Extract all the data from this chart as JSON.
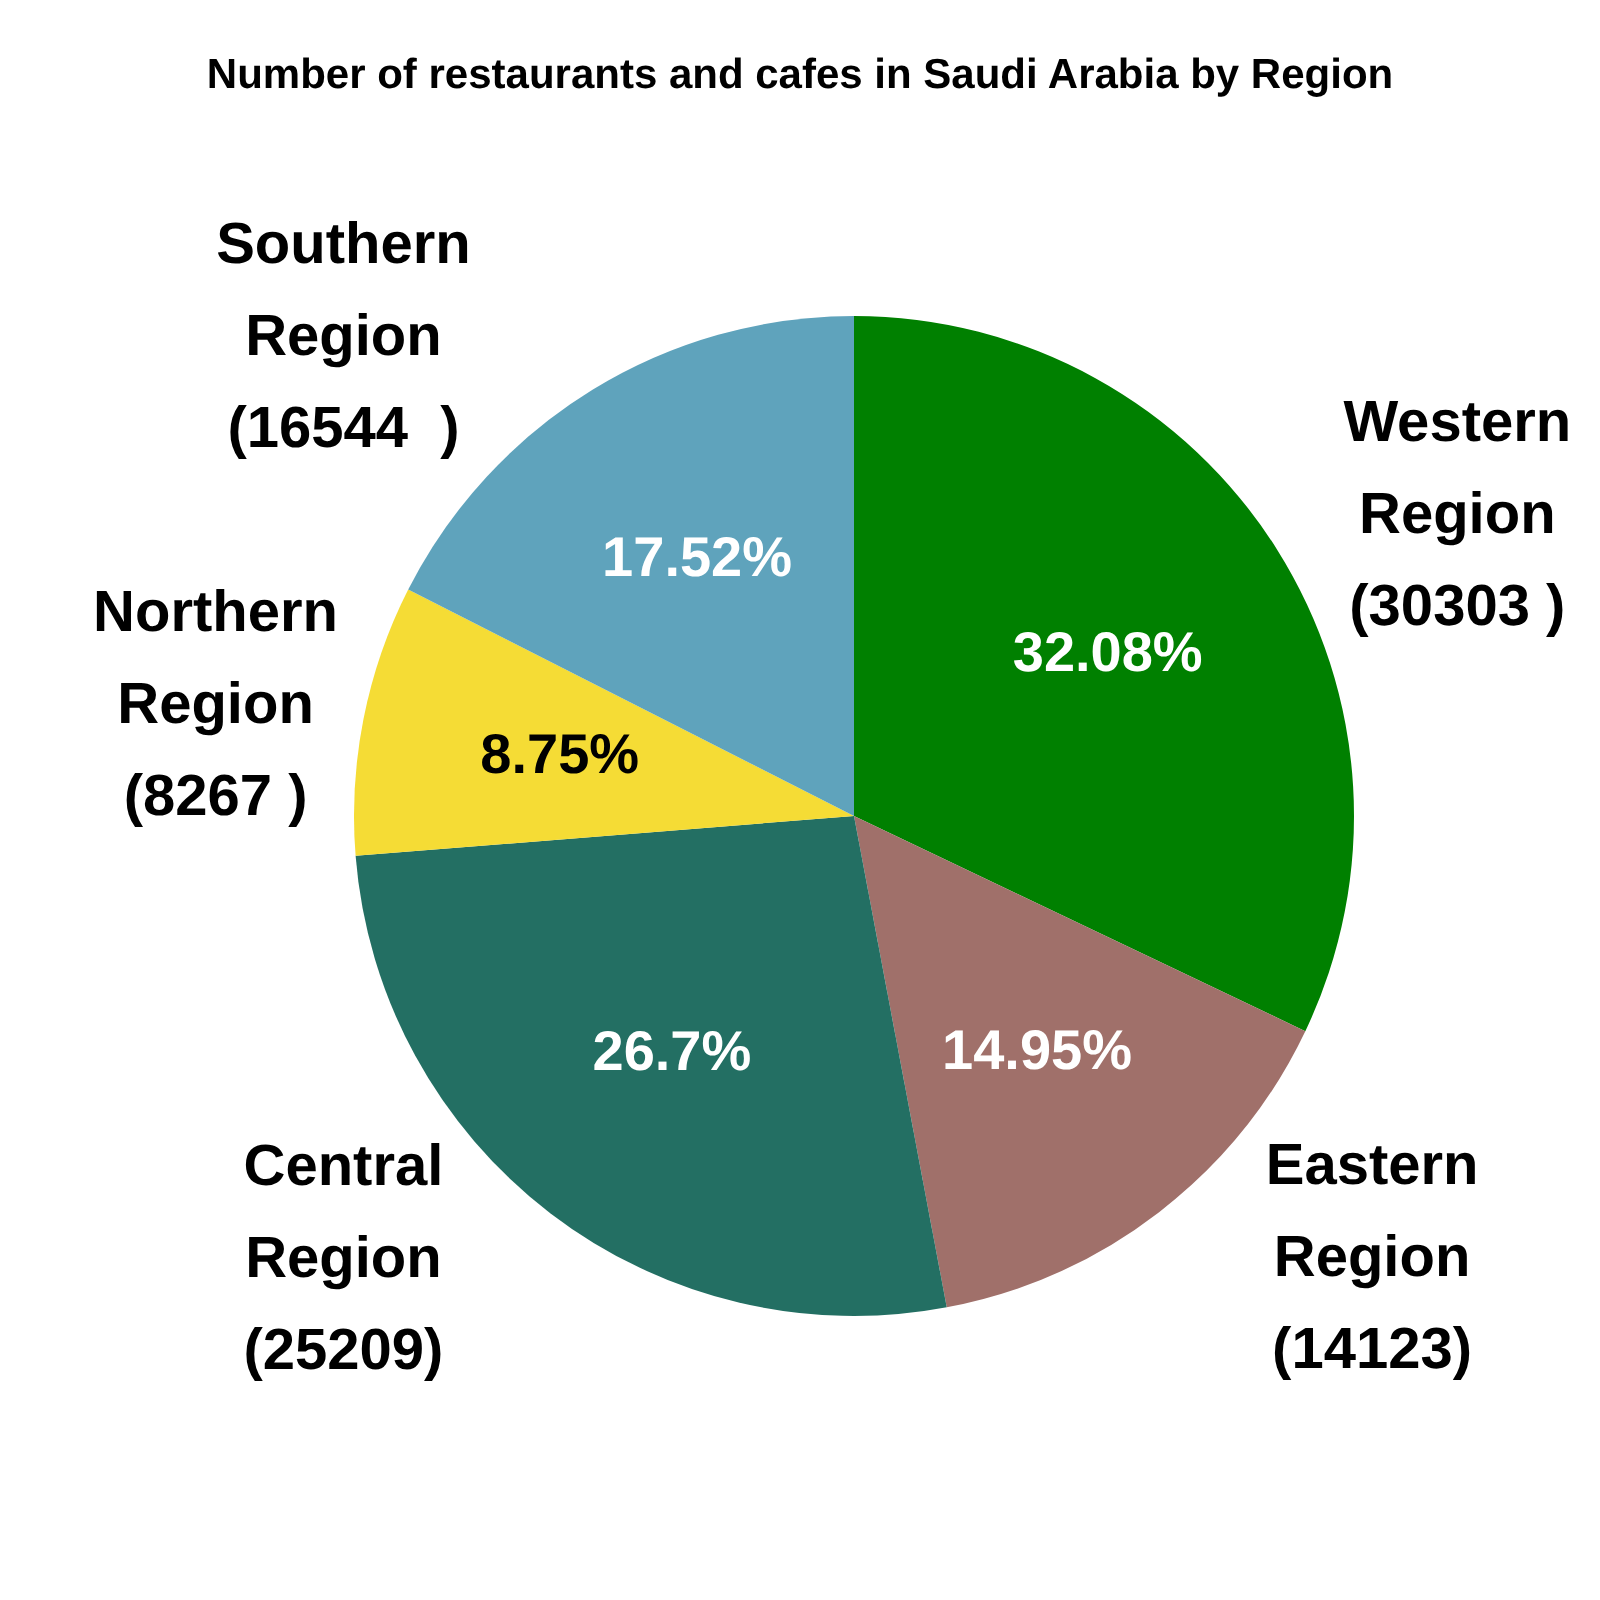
{
  "chart_data": {
    "type": "pie",
    "title": "Number of restaurants and cafes in Saudi Arabia by Region",
    "categories": [
      "Western Region (30303 )",
      "Eastern Region (14123)",
      "Central Region (25209)",
      "Northern Region (8267 )",
      "Southern Region (16544  )"
    ],
    "values": [
      32.08,
      14.95,
      26.7,
      8.75,
      17.52
    ],
    "colors": [
      "#008000",
      "#a0706a",
      "#236f63",
      "#f5dc35",
      "#5fa3bc"
    ],
    "value_labels": [
      "32.08%",
      "14.95%",
      "26.7%",
      "8.75%",
      "17.52%"
    ]
  }
}
